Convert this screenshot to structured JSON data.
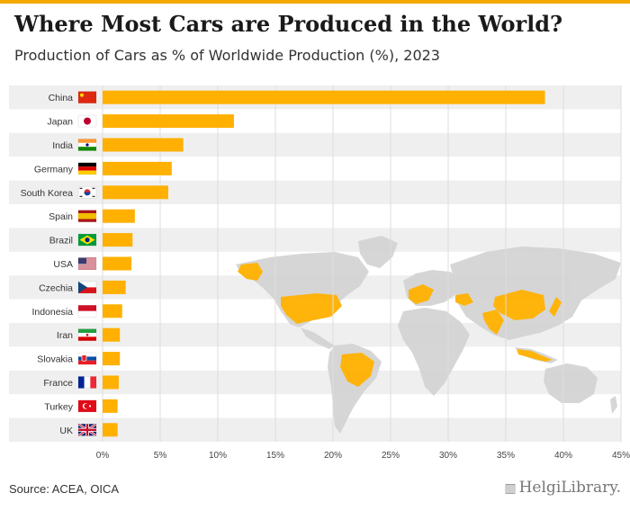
{
  "header": {
    "title": "Where Most Cars are Produced in the World?",
    "subtitle": "Production of Cars as % of Worldwide Production (%), 2023"
  },
  "footer": {
    "source": "Source: ACEA, OICA",
    "brand": "HelgiLibrary."
  },
  "colors": {
    "bar": "#ffb000",
    "accent": "#f5a800",
    "stripe": "#efefef",
    "grid": "#dddddd",
    "map_land": "#d4d4d4"
  },
  "chart_data": {
    "type": "bar",
    "orientation": "horizontal",
    "title": "Where Most Cars are Produced in the World?",
    "subtitle": "Production of Cars as % of Worldwide Production (%), 2023",
    "xlabel": "",
    "ylabel": "",
    "xlim": [
      0,
      45
    ],
    "x_ticks": [
      0,
      5,
      10,
      15,
      20,
      25,
      30,
      35,
      40,
      45
    ],
    "x_tick_labels": [
      "0%",
      "5%",
      "10%",
      "15%",
      "20%",
      "25%",
      "30%",
      "35%",
      "40%",
      "45%"
    ],
    "categories": [
      "China",
      "Japan",
      "India",
      "Germany",
      "South Korea",
      "Spain",
      "Brazil",
      "USA",
      "Czechia",
      "Indonesia",
      "Iran",
      "Slovakia",
      "France",
      "Turkey",
      "UK"
    ],
    "values": [
      38.4,
      11.4,
      7.0,
      6.0,
      5.7,
      2.8,
      2.6,
      2.5,
      2.0,
      1.7,
      1.5,
      1.5,
      1.4,
      1.3,
      1.3
    ],
    "grid": true,
    "legend": "none",
    "flag_icons": [
      "china-flag-icon",
      "japan-flag-icon",
      "india-flag-icon",
      "germany-flag-icon",
      "south-korea-flag-icon",
      "spain-flag-icon",
      "brazil-flag-icon",
      "usa-flag-icon",
      "czechia-flag-icon",
      "indonesia-flag-icon",
      "iran-flag-icon",
      "slovakia-flag-icon",
      "france-flag-icon",
      "turkey-flag-icon",
      "uk-flag-icon"
    ]
  }
}
